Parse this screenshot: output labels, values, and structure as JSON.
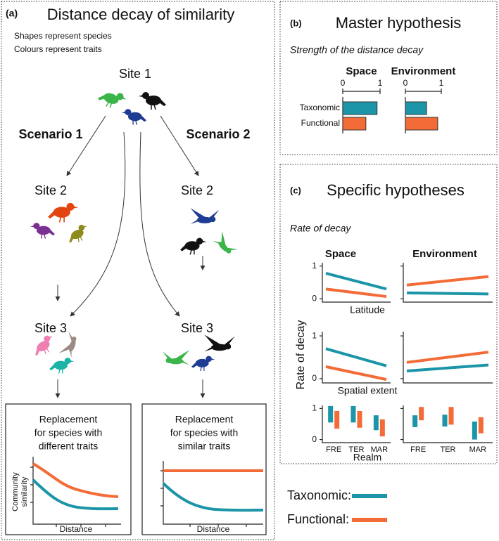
{
  "panel_a": {
    "label": "(a)",
    "title": "Distance decay of similarity",
    "notes": [
      "Shapes represent species",
      "Colours represent traits"
    ],
    "site1": "Site 1",
    "scenarios": [
      {
        "name": "Scenario 1",
        "site2": "Site 2",
        "site3": "Site 3",
        "box_title": [
          "Replacement",
          "for species with",
          "different traits"
        ],
        "ylabel": [
          "Community",
          "similarity"
        ],
        "xlabel": "Distance"
      },
      {
        "name": "Scenario 2",
        "site2": "Site 2",
        "site3": "Site 3",
        "box_title": [
          "Replacement",
          "for species with",
          "similar traits"
        ],
        "xlabel": "Distance"
      }
    ]
  },
  "panel_b": {
    "label": "(b)",
    "title": "Master hypothesis",
    "subtitle": "Strength of the distance decay",
    "chart_data": {
      "type": "hbar",
      "categories": [
        "Taxonomic",
        "Functional"
      ],
      "xlim": [
        0,
        1
      ],
      "xticks": [
        0,
        1
      ],
      "facets": [
        {
          "title": "Space",
          "values": [
            0.92,
            0.62
          ]
        },
        {
          "title": "Environment",
          "values": [
            0.59,
            0.9
          ]
        }
      ]
    }
  },
  "panel_c": {
    "label": "(c)",
    "title": "Specific hypotheses",
    "subtitle": "Rate of decay",
    "chart_data": {
      "ylabel": "Rate of decay",
      "facet_titles": [
        "Space",
        "Environment"
      ],
      "ylim": [
        -0.1,
        1.1
      ],
      "yticks": [
        0,
        1
      ],
      "rows": [
        {
          "type": "line",
          "xlabel": "Latitude",
          "facets": [
            [
              [
                0.78,
                0.3
              ],
              [
                0.3,
                0.07
              ]
            ],
            [
              [
                0.18,
                0.15
              ],
              [
                0.42,
                0.68
              ]
            ]
          ]
        },
        {
          "type": "line",
          "xlabel": "Spatial extent",
          "facets": [
            [
              [
                0.7,
                0.3
              ],
              [
                0.28,
                -0.02
              ]
            ],
            [
              [
                0.18,
                0.32
              ],
              [
                0.38,
                0.62
              ]
            ]
          ]
        },
        {
          "type": "range",
          "xlabel": "Realm",
          "categories": [
            "FRE",
            "TER",
            "MAR"
          ],
          "facets": [
            [
              [
                [
                  0.55,
                  1.08
                ],
                [
                  0.55,
                  1.08
                ],
                [
                  0.3,
                  0.78
                ]
              ],
              [
                [
                  0.35,
                  0.92
                ],
                [
                  0.38,
                  0.92
                ],
                [
                  0.1,
                  0.65
                ]
              ]
            ],
            [
              [
                [
                  0.4,
                  0.78
                ],
                [
                  0.42,
                  0.8
                ],
                [
                  0,
                  0.58
                ]
              ],
              [
                [
                  0.62,
                  1.05
                ],
                [
                  0.48,
                  1.05
                ],
                [
                  0.2,
                  0.72
                ]
              ]
            ]
          ]
        }
      ]
    }
  },
  "legend": [
    {
      "label": "Taxonomic:",
      "color": "#1b95a7"
    },
    {
      "label": "Functional:",
      "color": "#f36b36"
    }
  ]
}
